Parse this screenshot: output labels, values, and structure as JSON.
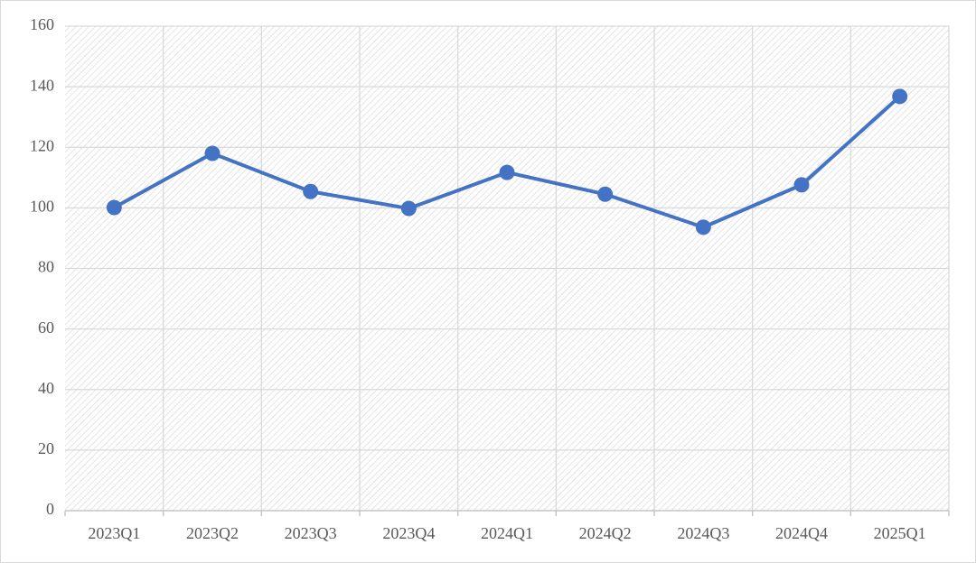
{
  "chart_data": {
    "type": "line",
    "categories": [
      "2023Q1",
      "2023Q2",
      "2023Q3",
      "2023Q4",
      "2024Q1",
      "2024Q2",
      "2024Q3",
      "2024Q4",
      "2025Q1"
    ],
    "series": [
      {
        "color": "#4472c4",
        "values": [
          100.1,
          118.0,
          105.4,
          99.8,
          111.7,
          104.5,
          93.6,
          107.6,
          136.8
        ]
      }
    ],
    "ylim": [
      0,
      160
    ],
    "yticks": [
      0,
      20,
      40,
      60,
      80,
      100,
      120,
      140,
      160
    ],
    "grid": true
  }
}
